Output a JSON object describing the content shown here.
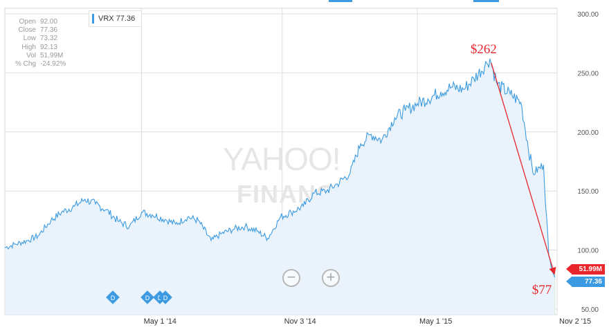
{
  "ohlc": [
    {
      "label": "Open",
      "value": "92.00"
    },
    {
      "label": "Close",
      "value": "77.36"
    },
    {
      "label": "Low",
      "value": "73.32"
    },
    {
      "label": "High",
      "value": "92.13"
    },
    {
      "label": "Vol",
      "value": "51.99M"
    },
    {
      "label": "% Chg",
      "value": "-24.92%"
    }
  ],
  "ticker_label": "VRX 77.36",
  "watermark": {
    "line1": "YAHOO!",
    "line2": "FINANCE"
  },
  "tags": {
    "volume": "51.99M",
    "price": "77.36"
  },
  "zoom": {
    "out": "−",
    "in": "+"
  },
  "dividend_marker": "D",
  "colors": {
    "line": "#3b9ae1",
    "fill": "#eaf3fb",
    "annotation": "#e8262b",
    "volume_up": "#9fd8a6",
    "volume_down": "#f2a6a8"
  },
  "chart_data": {
    "type": "area",
    "series": [
      {
        "name": "VRX",
        "x": [
          "2013-11-01",
          "2013-11-15",
          "2013-12-01",
          "2013-12-15",
          "2014-01-01",
          "2014-01-15",
          "2014-02-01",
          "2014-02-15",
          "2014-03-01",
          "2014-03-15",
          "2014-04-01",
          "2014-04-15",
          "2014-05-01",
          "2014-05-15",
          "2014-06-01",
          "2014-06-15",
          "2014-07-01",
          "2014-07-15",
          "2014-08-01",
          "2014-08-15",
          "2014-09-01",
          "2014-09-15",
          "2014-10-01",
          "2014-10-15",
          "2014-11-01",
          "2014-11-15",
          "2014-12-01",
          "2014-12-15",
          "2015-01-01",
          "2015-01-15",
          "2015-02-01",
          "2015-02-15",
          "2015-03-01",
          "2015-03-15",
          "2015-04-01",
          "2015-04-15",
          "2015-05-01",
          "2015-05-15",
          "2015-06-01",
          "2015-06-15",
          "2015-07-01",
          "2015-07-15",
          "2015-08-01",
          "2015-08-05",
          "2015-08-15",
          "2015-09-01",
          "2015-09-15",
          "2015-10-01",
          "2015-10-15",
          "2015-10-22",
          "2015-10-30"
        ],
        "values": [
          102,
          105,
          108,
          112,
          125,
          132,
          137,
          143,
          139,
          134,
          124,
          120,
          132,
          130,
          126,
          122,
          128,
          125,
          108,
          114,
          118,
          120,
          116,
          110,
          128,
          132,
          137,
          148,
          150,
          156,
          165,
          190,
          198,
          193,
          212,
          218,
          224,
          228,
          234,
          238,
          236,
          245,
          258,
          262,
          240,
          232,
          225,
          165,
          172,
          95,
          77
        ]
      }
    ],
    "annotations": [
      {
        "text": "$262",
        "x": "2015-08-05",
        "y": 262
      },
      {
        "text": "$77",
        "x": "2015-10-30",
        "y": 77
      }
    ],
    "x_ticks": [
      "May 1 '14",
      "Nov 3 '14",
      "May 1 '15",
      "Nov 2 '15"
    ],
    "y_ticks": [
      "50.00",
      "100.00",
      "150.00",
      "200.00",
      "250.00",
      "300.00"
    ],
    "ylim": [
      50,
      300
    ],
    "grid": true,
    "legend": "top-left"
  }
}
